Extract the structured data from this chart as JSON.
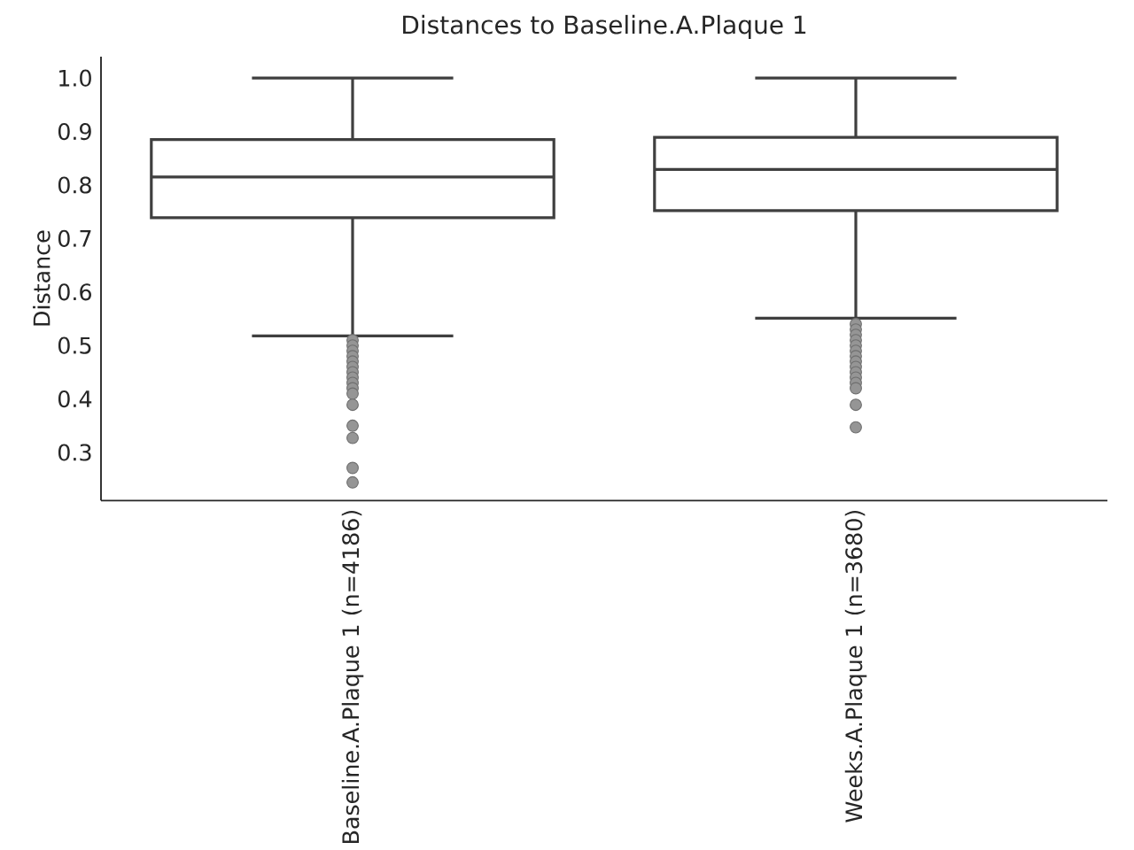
{
  "chart_data": {
    "type": "box",
    "title": "Distances to Baseline.A.Plaque 1",
    "ylabel": "Distance",
    "categories": [
      "Baseline.A.Plaque 1 (n=4186)",
      "Weeks.A.Plaque 1 (n=3680)"
    ],
    "series": [
      {
        "color": "#3f3f3f",
        "boxes": [
          {
            "low": 0.518,
            "q1": 0.739,
            "median": 0.815,
            "q3": 0.885,
            "high": 1.0,
            "outliers": [
              0.51,
              0.5,
              0.49,
              0.48,
              0.47,
              0.46,
              0.45,
              0.44,
              0.43,
              0.42,
              0.41,
              0.389,
              0.35,
              0.327,
              0.271,
              0.244
            ]
          },
          {
            "low": 0.551,
            "q1": 0.752,
            "median": 0.829,
            "q3": 0.889,
            "high": 1.0,
            "outliers": [
              0.54,
              0.53,
              0.52,
              0.51,
              0.5,
              0.49,
              0.48,
              0.47,
              0.46,
              0.45,
              0.44,
              0.43,
              0.42,
              0.389,
              0.347
            ]
          }
        ]
      }
    ],
    "ylim": [
      0.21,
      1.04
    ],
    "yticks": [
      0.3,
      0.4,
      0.5,
      0.6,
      0.7,
      0.8,
      0.9,
      {
        "value": 1.0,
        "label": "1.0"
      }
    ],
    "grid": false
  }
}
